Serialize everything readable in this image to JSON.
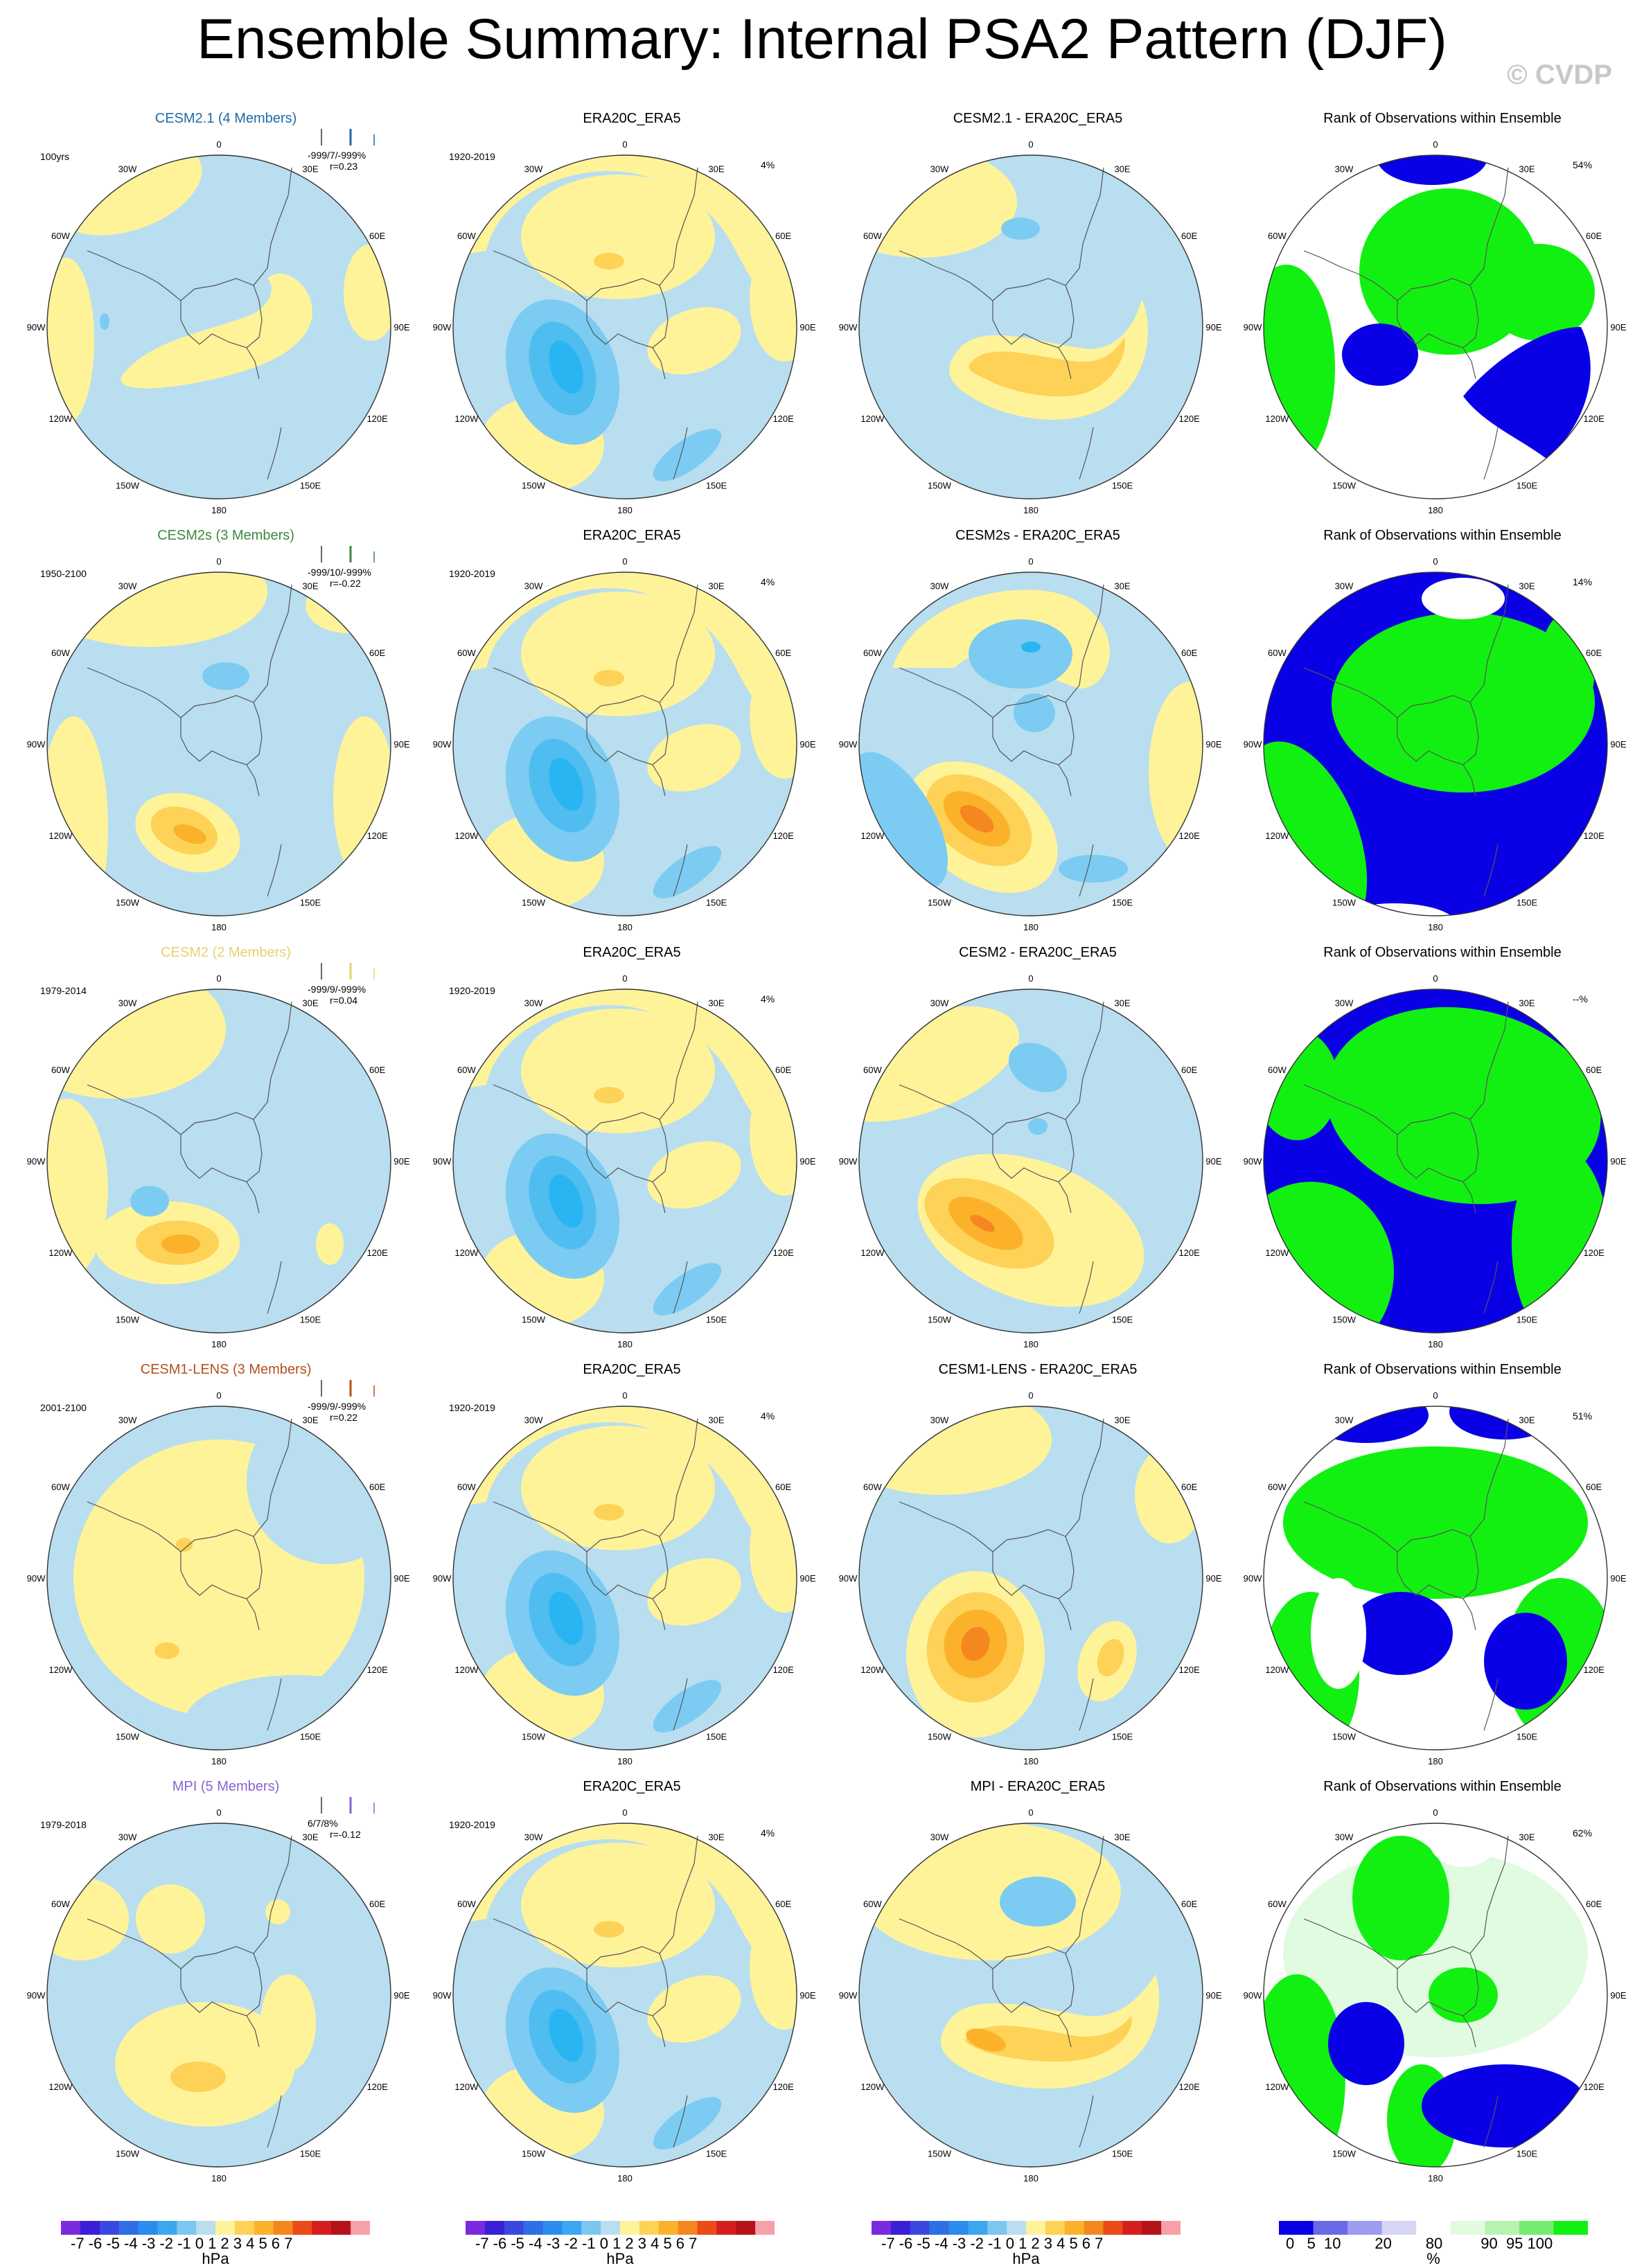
{
  "title": "Ensemble Summary: Internal PSA2 Pattern (DJF)",
  "watermark": "© CVDP",
  "colors": {
    "ocean": "#b8def0",
    "pos1": "#fff39a",
    "pos2": "#fdd257",
    "pos3": "#fbb22a",
    "pos4": "#f4871f",
    "neg1": "#7ccbf2",
    "neg2": "#29b5f1",
    "rank_low": "#0a00e6",
    "rank_high": "#12f012",
    "rank_pale": "#e1fbe0"
  },
  "lon_labels": [
    "0",
    "30E",
    "60E",
    "90E",
    "120E",
    "150E",
    "180",
    "150W",
    "120W",
    "90W",
    "60W",
    "30W"
  ],
  "rows": [
    {
      "model_title": "CESM2.1 (4 Members)",
      "model_color": "#1f6aa4",
      "period": "100yrs",
      "pattern_stats": "-999/7/-999%",
      "pattern_r": "r=0.23",
      "obs_title": "ERA20C_ERA5",
      "obs_period": "1920-2019",
      "obs_pct": "4%",
      "diff_title": "CESM2.1 - ERA20C_ERA5",
      "rank_title": "Rank of Observations within Ensemble",
      "rank_pct": "54%"
    },
    {
      "model_title": "CESM2s (3 Members)",
      "model_color": "#3c8a3c",
      "period": "1950-2100",
      "pattern_stats": "-999/10/-999%",
      "pattern_r": "r=-0.22",
      "obs_title": "ERA20C_ERA5",
      "obs_period": "1920-2019",
      "obs_pct": "4%",
      "diff_title": "CESM2s - ERA20C_ERA5",
      "rank_title": "Rank of Observations within Ensemble",
      "rank_pct": "14%"
    },
    {
      "model_title": "CESM2 (2 Members)",
      "model_color": "#e6d26e",
      "period": "1979-2014",
      "pattern_stats": "-999/9/-999%",
      "pattern_r": "r=0.04",
      "obs_title": "ERA20C_ERA5",
      "obs_period": "1920-2019",
      "obs_pct": "4%",
      "diff_title": "CESM2 - ERA20C_ERA5",
      "rank_title": "Rank of Observations within Ensemble",
      "rank_pct": "--%"
    },
    {
      "model_title": "CESM1-LENS (3 Members)",
      "model_color": "#b4501e",
      "period": "2001-2100",
      "pattern_stats": "-999/9/-999%",
      "pattern_r": "r=0.22",
      "obs_title": "ERA20C_ERA5",
      "obs_period": "1920-2019",
      "obs_pct": "4%",
      "diff_title": "CESM1-LENS - ERA20C_ERA5",
      "rank_title": "Rank of Observations within Ensemble",
      "rank_pct": "51%"
    },
    {
      "model_title": "MPI (5 Members)",
      "model_color": "#8a64d2",
      "period": "1979-2018",
      "pattern_stats": "6/7/8%",
      "pattern_r": "r=-0.12",
      "obs_title": "ERA20C_ERA5",
      "obs_period": "1920-2019",
      "obs_pct": "4%",
      "diff_title": "MPI - ERA20C_ERA5",
      "rank_title": "Rank of Observations within Ensemble",
      "rank_pct": "62%"
    }
  ],
  "colorbar_hpa": {
    "ticks": "-7 -6 -5 -4 -3 -2 -1  0  1  2  3  4  5  6  7",
    "unit": "hPa",
    "colors": [
      "#7b2ae0",
      "#3a1fd6",
      "#3a47e0",
      "#2f6fe6",
      "#2b8bef",
      "#3aa7f0",
      "#7cc6f0",
      "#b8def0",
      "#fff39a",
      "#fdd257",
      "#fbb22a",
      "#f4871f",
      "#ea4b17",
      "#d61e1e",
      "#b5121a",
      "#f6a0a8"
    ]
  },
  "colorbar_rank": {
    "ticks": "0   5  10        20        80         90  95 100",
    "unit": "%",
    "colors": [
      "#0a00e6",
      "#6a6ae8",
      "#9c9cf0",
      "#d6d6f4",
      "#ffffff",
      "#e1fbe0",
      "#b6f3b0",
      "#74ec70",
      "#12f012"
    ]
  }
}
